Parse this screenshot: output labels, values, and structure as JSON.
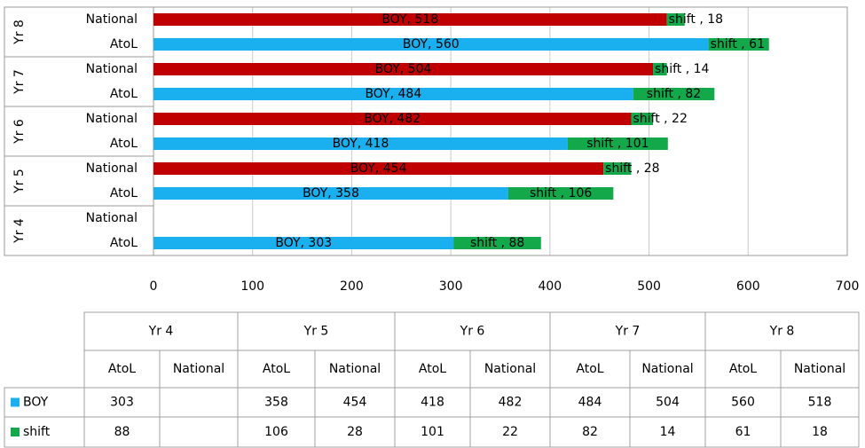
{
  "chart_data": {
    "type": "stacked-barh",
    "groups": [
      "Yr 4",
      "Yr 5",
      "Yr 6",
      "Yr 7",
      "Yr 8"
    ],
    "categories": [
      "AtoL",
      "National",
      "AtoL",
      "National",
      "AtoL",
      "National",
      "AtoL",
      "National",
      "AtoL",
      "National"
    ],
    "series": [
      {
        "name": "BOY",
        "color": "#1ab0ef",
        "colors": [
          "#1ab0ef",
          "#c00000",
          "#1ab0ef",
          "#c00000",
          "#1ab0ef",
          "#c00000",
          "#1ab0ef",
          "#c00000",
          "#1ab0ef",
          "#c00000"
        ],
        "values": [
          303,
          null,
          358,
          454,
          418,
          482,
          484,
          504,
          560,
          518
        ],
        "value_labels": [
          "BOY, 303",
          null,
          "BOY, 358",
          "BOY, 454",
          "BOY, 418",
          "BOY, 482",
          "BOY, 484",
          "BOY, 504",
          "BOY, 560",
          "BOY, 518"
        ]
      },
      {
        "name": "shift",
        "color": "#13a94a",
        "values": [
          88,
          null,
          106,
          28,
          101,
          22,
          82,
          14,
          61,
          18
        ],
        "value_labels": [
          "shift , 88",
          null,
          "shift , 106",
          "shift , 28",
          "shift , 101",
          "shift , 22",
          "shift , 82",
          "shift , 14",
          "shift , 61",
          "shift , 18"
        ]
      }
    ],
    "xlim": [
      0,
      700
    ],
    "xticks": [
      0,
      100,
      200,
      300,
      400,
      500,
      600,
      700
    ],
    "grid": true
  }
}
